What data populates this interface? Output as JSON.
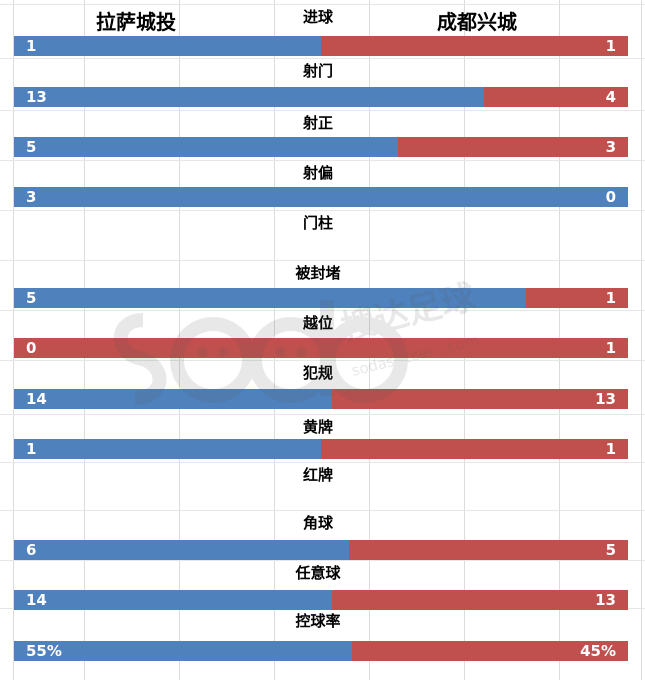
{
  "header": {
    "home_team": "拉萨城投",
    "away_team": "成都兴城"
  },
  "watermark": {
    "brand_text": "搜达足球",
    "url_text": "sodasoccer . com"
  },
  "colors": {
    "home": "#4f81bd",
    "away": "#c0504d"
  },
  "chart_data": {
    "type": "bar",
    "orientation": "horizontal-stacked",
    "series": [
      {
        "name": "拉萨城投",
        "color": "#4f81bd"
      },
      {
        "name": "成都兴城",
        "color": "#c0504d"
      }
    ],
    "rows": [
      {
        "label": "进球",
        "home": 1,
        "away": 1,
        "home_text": "1",
        "away_text": "1",
        "has_bar": true
      },
      {
        "label": "射门",
        "home": 13,
        "away": 4,
        "home_text": "13",
        "away_text": "4",
        "has_bar": true
      },
      {
        "label": "射正",
        "home": 5,
        "away": 3,
        "home_text": "5",
        "away_text": "3",
        "has_bar": true
      },
      {
        "label": "射偏",
        "home": 3,
        "away": 0,
        "home_text": "3",
        "away_text": "0",
        "has_bar": true
      },
      {
        "label": "门柱",
        "home": 0,
        "away": 0,
        "home_text": "",
        "away_text": "",
        "has_bar": false
      },
      {
        "label": "被封堵",
        "home": 5,
        "away": 1,
        "home_text": "5",
        "away_text": "1",
        "has_bar": true
      },
      {
        "label": "越位",
        "home": 0,
        "away": 1,
        "home_text": "0",
        "away_text": "1",
        "has_bar": true
      },
      {
        "label": "犯规",
        "home": 14,
        "away": 13,
        "home_text": "14",
        "away_text": "13",
        "has_bar": true
      },
      {
        "label": "黄牌",
        "home": 1,
        "away": 1,
        "home_text": "1",
        "away_text": "1",
        "has_bar": true
      },
      {
        "label": "红牌",
        "home": 0,
        "away": 0,
        "home_text": "",
        "away_text": "",
        "has_bar": false
      },
      {
        "label": "角球",
        "home": 6,
        "away": 5,
        "home_text": "6",
        "away_text": "5",
        "has_bar": true
      },
      {
        "label": "任意球",
        "home": 14,
        "away": 13,
        "home_text": "14",
        "away_text": "13",
        "has_bar": true
      },
      {
        "label": "控球率",
        "home": 55,
        "away": 45,
        "home_text": "55%",
        "away_text": "45%",
        "has_bar": true
      }
    ]
  }
}
